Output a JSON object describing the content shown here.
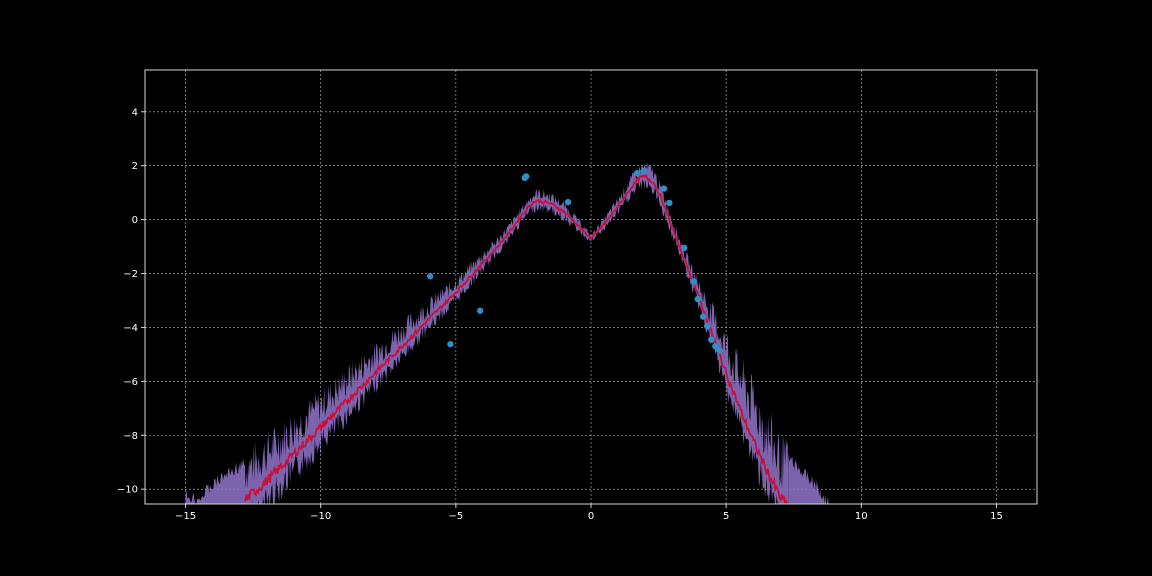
{
  "chart_data": {
    "type": "line",
    "title": "",
    "xlabel": "",
    "ylabel": "",
    "xlim": [
      -16.5,
      16.5
    ],
    "ylim": [
      -10.55,
      5.55
    ],
    "x_ticks": [
      -15,
      -10,
      -5,
      0,
      5,
      10,
      15
    ],
    "y_ticks": [
      -10,
      -8,
      -6,
      -4,
      -2,
      0,
      2,
      4
    ],
    "x_tick_labels": [
      "−15",
      "−10",
      "−5",
      "0",
      "5",
      "10",
      "15"
    ],
    "y_tick_labels": [
      "−10",
      "−8",
      "−6",
      "−4",
      "−2",
      "0",
      "2",
      "4"
    ],
    "grid": true,
    "colors": {
      "background": "#000000",
      "band": "#8a6fbf",
      "mean_line": "#c8103c",
      "points": "#2f8fc6",
      "grid": "#bfbfbf",
      "axes": "#d9d9d9"
    },
    "mean_curve": {
      "x": [
        -12.8,
        -12,
        -11,
        -10,
        -9,
        -8,
        -7,
        -6,
        -5,
        -4,
        -3.5,
        -3,
        -2.5,
        -2.2,
        -2,
        -1.5,
        -1,
        -0.5,
        0,
        0.5,
        1,
        1.5,
        1.8,
        2,
        2.3,
        2.6,
        3,
        3.5,
        4,
        4.5,
        5,
        5.5,
        6,
        6.5,
        7,
        7.3
      ],
      "y": [
        -10.4,
        -9.7,
        -8.7,
        -7.7,
        -6.7,
        -5.7,
        -4.7,
        -3.7,
        -2.7,
        -1.6,
        -1.05,
        -0.45,
        0.25,
        0.6,
        0.7,
        0.6,
        0.3,
        -0.2,
        -0.7,
        -0.15,
        0.5,
        1.2,
        1.55,
        1.6,
        1.4,
        0.8,
        -0.3,
        -1.6,
        -2.9,
        -4.3,
        -5.7,
        -7.0,
        -8.2,
        -9.3,
        -10.3,
        -10.6
      ]
    },
    "band_lower_spread": [
      1.2,
      1.1,
      0.95,
      0.85,
      0.75,
      0.65,
      0.55,
      0.45,
      0.4,
      0.32,
      0.3,
      0.28,
      0.3,
      0.32,
      0.33,
      0.32,
      0.3,
      0.22,
      0.15,
      0.22,
      0.3,
      0.35,
      0.4,
      0.4,
      0.4,
      0.4,
      0.35,
      0.35,
      0.45,
      0.55,
      0.7,
      0.85,
      0.9,
      1.0,
      1.1,
      1.15
    ],
    "band_upper_spread": [
      1.6,
      1.5,
      1.35,
      1.2,
      1.1,
      0.95,
      0.8,
      0.65,
      0.5,
      0.38,
      0.33,
      0.3,
      0.3,
      0.35,
      0.4,
      0.38,
      0.32,
      0.25,
      0.15,
      0.22,
      0.3,
      0.4,
      0.45,
      0.5,
      0.5,
      0.45,
      0.38,
      0.4,
      0.6,
      1.0,
      1.4,
      1.7,
      1.9,
      2.0,
      2.0,
      2.0
    ],
    "band_extension_right": {
      "x": [
        7.3,
        7.6,
        8.0,
        8.3,
        8.6,
        8.8
      ],
      "lower": [
        -10.6,
        -10.6,
        -10.6,
        -10.6,
        -10.6,
        -10.6
      ],
      "upper": [
        -8.6,
        -8.9,
        -9.3,
        -9.6,
        -10.0,
        -10.3
      ]
    },
    "band_extension_left": {
      "x": [
        -15.0,
        -14.5,
        -14.0,
        -13.5,
        -13.0,
        -12.8
      ],
      "lower": [
        -10.6,
        -10.6,
        -10.6,
        -10.6,
        -10.6,
        -10.6
      ],
      "upper": [
        -10.0,
        -10.1,
        -9.6,
        -9.2,
        -8.9,
        -8.8
      ]
    },
    "points": [
      {
        "x": -5.95,
        "y": -2.1
      },
      {
        "x": -5.2,
        "y": -4.62
      },
      {
        "x": -4.1,
        "y": -3.38
      },
      {
        "x": -2.45,
        "y": 1.55
      },
      {
        "x": -2.4,
        "y": 1.6
      },
      {
        "x": -0.85,
        "y": 0.65
      },
      {
        "x": 1.7,
        "y": 1.72
      },
      {
        "x": 1.95,
        "y": 1.8
      },
      {
        "x": 2.7,
        "y": 1.15
      },
      {
        "x": 2.9,
        "y": 0.62
      },
      {
        "x": 3.45,
        "y": -1.05
      },
      {
        "x": 3.8,
        "y": -2.3
      },
      {
        "x": 3.95,
        "y": -2.95
      },
      {
        "x": 4.15,
        "y": -3.6
      },
      {
        "x": 4.3,
        "y": -3.95
      },
      {
        "x": 4.45,
        "y": -4.45
      },
      {
        "x": 4.6,
        "y": -4.7
      },
      {
        "x": 4.75,
        "y": -4.85
      }
    ]
  }
}
